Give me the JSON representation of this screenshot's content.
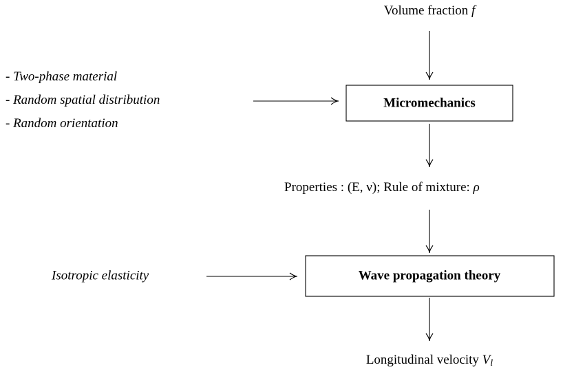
{
  "inputs": {
    "volume_fraction": {
      "text": "Volume fraction",
      "symbol": "f"
    },
    "bullet": "-",
    "assumptions": [
      "Two-phase material",
      "Random spatial distribution",
      "Random orientation"
    ],
    "elasticity": "Isotropic elasticity"
  },
  "nodes": [
    {
      "label": "Micromechanics"
    },
    {
      "label": "Wave propagation theory"
    }
  ],
  "properties": {
    "text": "Properties :",
    "math": "(E, ν)",
    "separator": ";",
    "rule": "Rule of mixture:",
    "symbol": "ρ"
  },
  "output": {
    "text": "Longitudinal velocity",
    "symbol": "V",
    "subscript": "l"
  }
}
